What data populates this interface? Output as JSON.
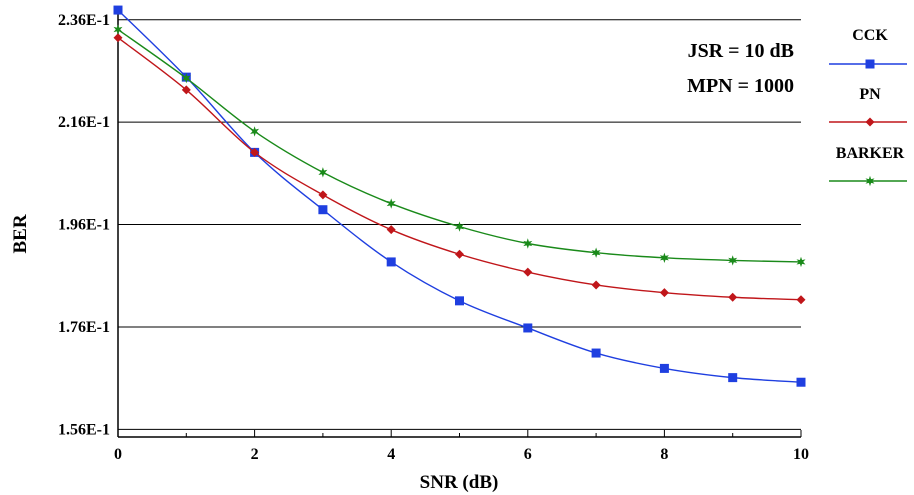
{
  "chart_data": {
    "type": "line",
    "xlabel": "SNR (dB)",
    "ylabel": "BER",
    "xlim": [
      0,
      10
    ],
    "ylim": [
      0.1545,
      0.2385
    ],
    "x_ticks": [
      0,
      2,
      4,
      6,
      8,
      10
    ],
    "x_tick_labels": [
      "0",
      "2",
      "4",
      "6",
      "8",
      "10"
    ],
    "y_ticks": [
      0.156,
      0.176,
      0.196,
      0.216,
      0.236
    ],
    "y_tick_labels": [
      "1.56E-1",
      "1.76E-1",
      "1.96E-1",
      "2.16E-1",
      "2.36E-1"
    ],
    "grid": "horizontal",
    "legend_position": "right",
    "annotations": [
      "JSR = 10 dB",
      "MPN = 1000"
    ],
    "x": [
      0,
      1,
      2,
      3,
      4,
      5,
      6,
      7,
      8,
      9,
      10
    ],
    "series": [
      {
        "name": "CCK",
        "color": "#1f3fe0",
        "marker": "square",
        "values": [
          0.2379,
          0.2248,
          0.2101,
          0.1989,
          0.1887,
          0.1811,
          0.1758,
          0.1709,
          0.1679,
          0.1661,
          0.1652
        ]
      },
      {
        "name": "PN",
        "color": "#c0161a",
        "marker": "diamond",
        "values": [
          0.2325,
          0.2223,
          0.2101,
          0.2018,
          0.195,
          0.1902,
          0.1867,
          0.1842,
          0.1827,
          0.1818,
          0.1813
        ]
      },
      {
        "name": "BARKER",
        "color": "#1a8a1a",
        "marker": "star",
        "values": [
          0.2341,
          0.2246,
          0.2142,
          0.2062,
          0.2001,
          0.1956,
          0.1923,
          0.1905,
          0.1895,
          0.189,
          0.1887
        ]
      }
    ]
  }
}
